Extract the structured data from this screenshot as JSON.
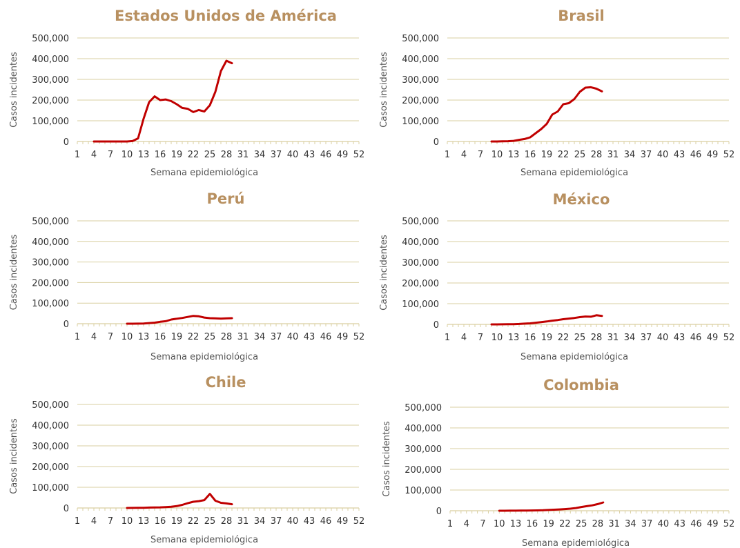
{
  "colors": {
    "title": "#b89060",
    "grid": "#d9cfa0",
    "line": "#c00000"
  },
  "chart_data": [
    {
      "type": "line",
      "title": "Estados Unidos de América",
      "xlabel": "Semana epidemiológica",
      "ylabel": "Casos incidentes",
      "ylim": [
        0,
        500000
      ],
      "yticks": [
        0,
        100000,
        200000,
        300000,
        400000,
        500000
      ],
      "ytick_labels": [
        "0",
        "100,000",
        "200,000",
        "300,000",
        "400,000",
        "500,000"
      ],
      "xlim": [
        1,
        52
      ],
      "xticks": [
        1,
        4,
        7,
        10,
        13,
        16,
        19,
        22,
        25,
        28,
        31,
        34,
        37,
        40,
        43,
        46,
        49,
        52
      ],
      "grid": true,
      "series": [
        {
          "x": [
            4,
            5,
            6,
            7,
            8,
            9,
            10,
            11,
            12,
            13,
            14,
            15,
            16,
            17,
            18,
            19,
            20,
            21,
            22,
            23,
            24,
            25,
            26,
            27,
            28,
            29
          ],
          "y": [
            0,
            0,
            0,
            0,
            0,
            0,
            0,
            2000,
            15000,
            110000,
            190000,
            218000,
            200000,
            203000,
            195000,
            180000,
            162000,
            158000,
            142000,
            152000,
            145000,
            175000,
            240000,
            340000,
            390000,
            378000
          ]
        }
      ]
    },
    {
      "type": "line",
      "title": "Brasil",
      "xlabel": "Semana epidemiológica",
      "ylabel": "Casos incidentes",
      "ylim": [
        0,
        500000
      ],
      "yticks": [
        0,
        100000,
        200000,
        300000,
        400000,
        500000
      ],
      "ytick_labels": [
        "0",
        "100,000",
        "200,000",
        "300,000",
        "400,000",
        "500,000"
      ],
      "xlim": [
        1,
        52
      ],
      "xticks": [
        1,
        4,
        7,
        10,
        13,
        16,
        19,
        22,
        25,
        28,
        31,
        34,
        37,
        40,
        43,
        46,
        49,
        52
      ],
      "grid": true,
      "series": [
        {
          "x": [
            9,
            10,
            11,
            12,
            13,
            14,
            15,
            16,
            17,
            18,
            19,
            20,
            21,
            22,
            23,
            24,
            25,
            26,
            27,
            28,
            29
          ],
          "y": [
            0,
            0,
            500,
            1500,
            3000,
            8000,
            12000,
            20000,
            40000,
            60000,
            85000,
            130000,
            145000,
            180000,
            185000,
            205000,
            240000,
            260000,
            262000,
            255000,
            242000
          ]
        }
      ]
    },
    {
      "type": "line",
      "title": "Perú",
      "xlabel": "Semana epidemiológica",
      "ylabel": "Casos incidentes",
      "ylim": [
        0,
        500000
      ],
      "yticks": [
        0,
        100000,
        200000,
        300000,
        400000,
        500000
      ],
      "ytick_labels": [
        "0",
        "100,000",
        "200,000",
        "300,000",
        "400,000",
        "500,000"
      ],
      "xlim": [
        1,
        52
      ],
      "xticks": [
        1,
        4,
        7,
        10,
        13,
        16,
        19,
        22,
        25,
        28,
        31,
        34,
        37,
        40,
        43,
        46,
        49,
        52
      ],
      "grid": true,
      "series": [
        {
          "x": [
            10,
            11,
            12,
            13,
            14,
            15,
            16,
            17,
            18,
            19,
            20,
            21,
            22,
            23,
            24,
            25,
            26,
            27,
            28,
            29
          ],
          "y": [
            0,
            0,
            500,
            1000,
            3000,
            5000,
            9000,
            12000,
            20000,
            24000,
            28000,
            33000,
            38000,
            36000,
            30000,
            27000,
            26000,
            25000,
            26000,
            27000
          ]
        }
      ]
    },
    {
      "type": "line",
      "title": "México",
      "xlabel": "Semana epidemiológica",
      "ylabel": "Casos incidentes",
      "ylim": [
        0,
        500000
      ],
      "yticks": [
        0,
        100000,
        200000,
        300000,
        400000,
        500000
      ],
      "ytick_labels": [
        "0",
        "100,000",
        "200,000",
        "300,000",
        "400,000",
        "500,000"
      ],
      "xlim": [
        1,
        52
      ],
      "xticks": [
        1,
        4,
        7,
        10,
        13,
        16,
        19,
        22,
        25,
        28,
        31,
        34,
        37,
        40,
        43,
        46,
        49,
        52
      ],
      "grid": true,
      "series": [
        {
          "x": [
            9,
            10,
            11,
            12,
            13,
            14,
            15,
            16,
            17,
            18,
            19,
            20,
            21,
            22,
            23,
            24,
            25,
            26,
            27,
            28,
            29
          ],
          "y": [
            0,
            0,
            200,
            500,
            1000,
            2000,
            3500,
            5000,
            8000,
            11000,
            14000,
            18000,
            21000,
            25000,
            28000,
            31000,
            35000,
            38000,
            37000,
            44000,
            41000
          ]
        }
      ]
    },
    {
      "type": "line",
      "title": "Chile",
      "xlabel": "Semana epidemiológica",
      "ylabel": "Casos incidentes",
      "ylim": [
        0,
        500000
      ],
      "yticks": [
        0,
        100000,
        200000,
        300000,
        400000,
        500000
      ],
      "ytick_labels": [
        "0",
        "100,000",
        "200,000",
        "300,000",
        "400,000",
        "500,000"
      ],
      "xlim": [
        1,
        52
      ],
      "xticks": [
        1,
        4,
        7,
        10,
        13,
        16,
        19,
        22,
        25,
        28,
        31,
        34,
        37,
        40,
        43,
        46,
        49,
        52
      ],
      "grid": true,
      "series": [
        {
          "x": [
            10,
            11,
            12,
            13,
            14,
            15,
            16,
            17,
            18,
            19,
            20,
            21,
            22,
            23,
            24,
            25,
            26,
            27,
            28,
            29
          ],
          "y": [
            0,
            200,
            500,
            1000,
            2000,
            2500,
            3000,
            4500,
            6000,
            9000,
            15000,
            23000,
            30000,
            33000,
            38000,
            68000,
            35000,
            25000,
            22000,
            18000
          ]
        }
      ]
    },
    {
      "type": "line",
      "title": "Colombia",
      "xlabel": "Semana epidemiológica",
      "ylabel": "Casos incidentes",
      "ylim": [
        0,
        500000
      ],
      "yticks": [
        0,
        100000,
        200000,
        300000,
        400000,
        500000
      ],
      "ytick_labels": [
        "0",
        "100,000",
        "200,000",
        "300,000",
        "400,000",
        "500,000"
      ],
      "xlim": [
        1,
        52
      ],
      "xticks": [
        1,
        4,
        7,
        10,
        13,
        16,
        19,
        22,
        25,
        28,
        31,
        34,
        37,
        40,
        43,
        46,
        49,
        52
      ],
      "grid": true,
      "series": [
        {
          "x": [
            10,
            11,
            12,
            13,
            14,
            15,
            16,
            17,
            18,
            19,
            20,
            21,
            22,
            23,
            24,
            25,
            26,
            27,
            28,
            29
          ],
          "y": [
            0,
            0,
            200,
            400,
            600,
            900,
            1200,
            1800,
            2500,
            3500,
            5000,
            6500,
            8000,
            10000,
            13000,
            18000,
            22000,
            26000,
            32000,
            40000
          ]
        }
      ]
    }
  ]
}
